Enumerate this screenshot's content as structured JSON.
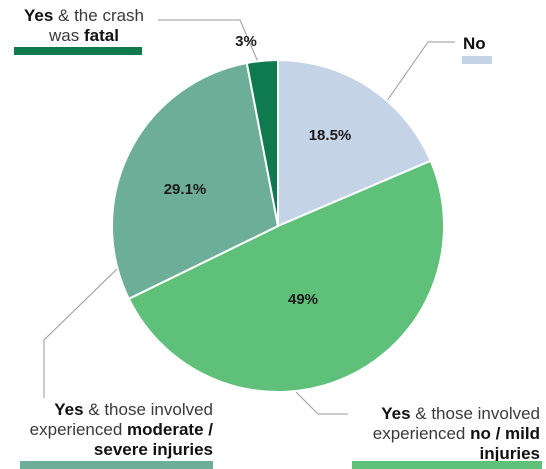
{
  "chart_data": {
    "type": "pie",
    "slices": [
      {
        "key": "no",
        "value": 18.5,
        "value_label": "18.5%",
        "color": "#c5d3e6",
        "legend": {
          "bold1": "No",
          "text1": "",
          "bold2": "",
          "text2": "",
          "lines": ""
        }
      },
      {
        "key": "mild",
        "value": 49,
        "value_label": "49%",
        "color": "#5fc07a",
        "legend": {
          "bold1": "Yes",
          "text1": " & those involved experienced ",
          "bold2": "no / mild injuries",
          "text2": ""
        }
      },
      {
        "key": "severe",
        "value": 29.1,
        "value_label": "29.1%",
        "color": "#6cae98",
        "legend": {
          "bold1": "Yes",
          "text1": " & those involved experienced ",
          "bold2": "moderate / severe injuries",
          "text2": ""
        }
      },
      {
        "key": "fatal",
        "value": 3,
        "value_label": "3%",
        "color": "#0f7a4e",
        "legend": {
          "bold1": "Yes",
          "text1": " & the crash was ",
          "bold2": "fatal",
          "text2": ""
        }
      }
    ],
    "start_direction": "top",
    "direction": "clockwise"
  }
}
